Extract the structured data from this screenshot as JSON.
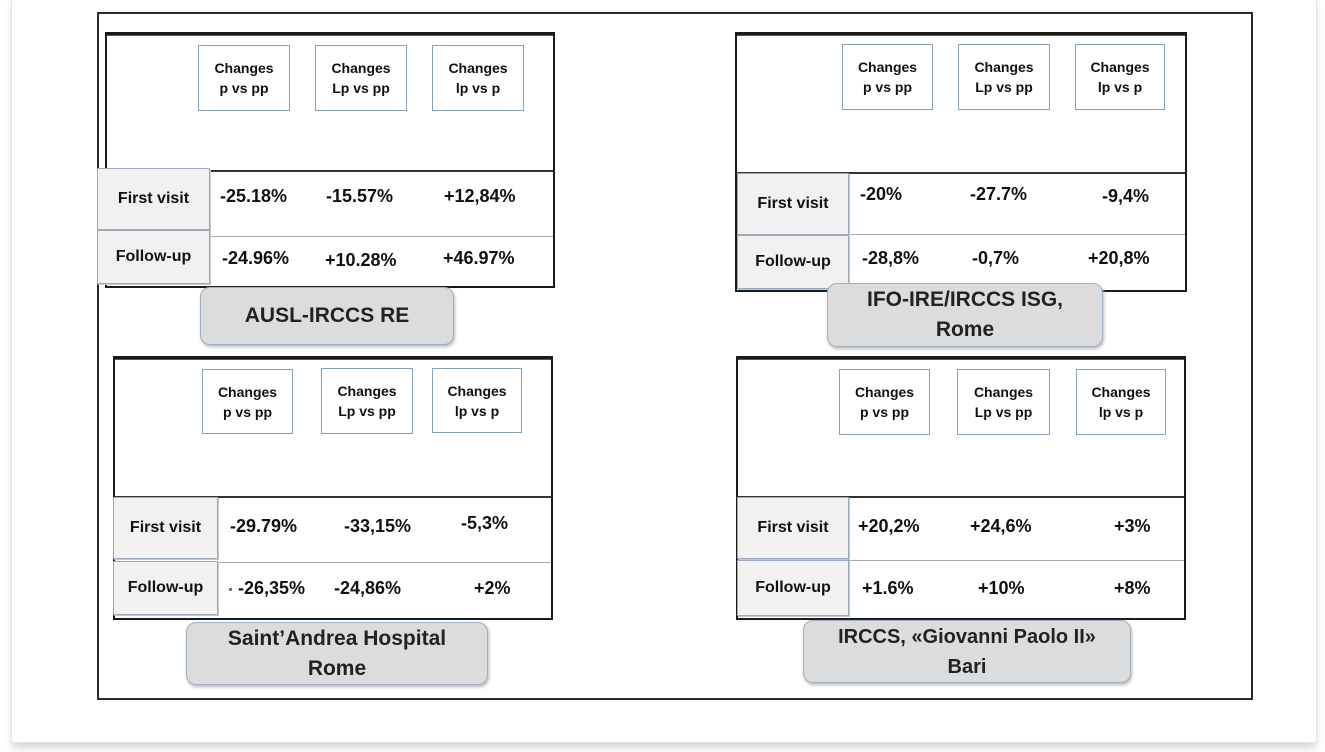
{
  "panels": [
    {
      "headers": [
        "Changes\np vs pp",
        "Changes\nLp vs pp",
        "Changes\nlp vs p"
      ],
      "row_labels": [
        "First visit",
        "Follow-up"
      ],
      "first_visit": [
        "-25.18%",
        "-15.57%",
        "+12,84%"
      ],
      "follow_up": [
        "-24.96%",
        "+10.28%",
        "+46.97%"
      ],
      "site": "AUSL-IRCCS RE"
    },
    {
      "headers": [
        "Changes\np vs pp",
        "Changes\nLp vs pp",
        "Changes\nlp vs p"
      ],
      "row_labels": [
        "First visit",
        "Follow-up"
      ],
      "first_visit": [
        "-20%",
        "-27.7%",
        "-9,4%"
      ],
      "follow_up": [
        "-28,8%",
        "-0,7%",
        "+20,8%"
      ],
      "site": "IFO-IRE/IRCCS ISG,\nRome"
    },
    {
      "headers": [
        "Changes\np vs pp",
        "Changes\nLp vs pp",
        "Changes\nlp vs p"
      ],
      "row_labels": [
        "First visit",
        "Follow-up"
      ],
      "first_visit": [
        "-29.79%",
        "-33,15%",
        "-5,3%"
      ],
      "follow_up": [
        "-26,35%",
        "-24,86%",
        "+2%"
      ],
      "site": "Saint’Andrea Hospital\nRome"
    },
    {
      "headers": [
        "Changes\np vs pp",
        "Changes\nLp vs pp",
        "Changes\nlp vs p"
      ],
      "row_labels": [
        "First visit",
        "Follow-up"
      ],
      "first_visit": [
        "+20,2%",
        "+24,6%",
        "+3%"
      ],
      "follow_up": [
        "+1.6%",
        "+10%",
        "+8%"
      ],
      "site": "IRCCS, «Giovanni Paolo II»\nBari"
    }
  ]
}
